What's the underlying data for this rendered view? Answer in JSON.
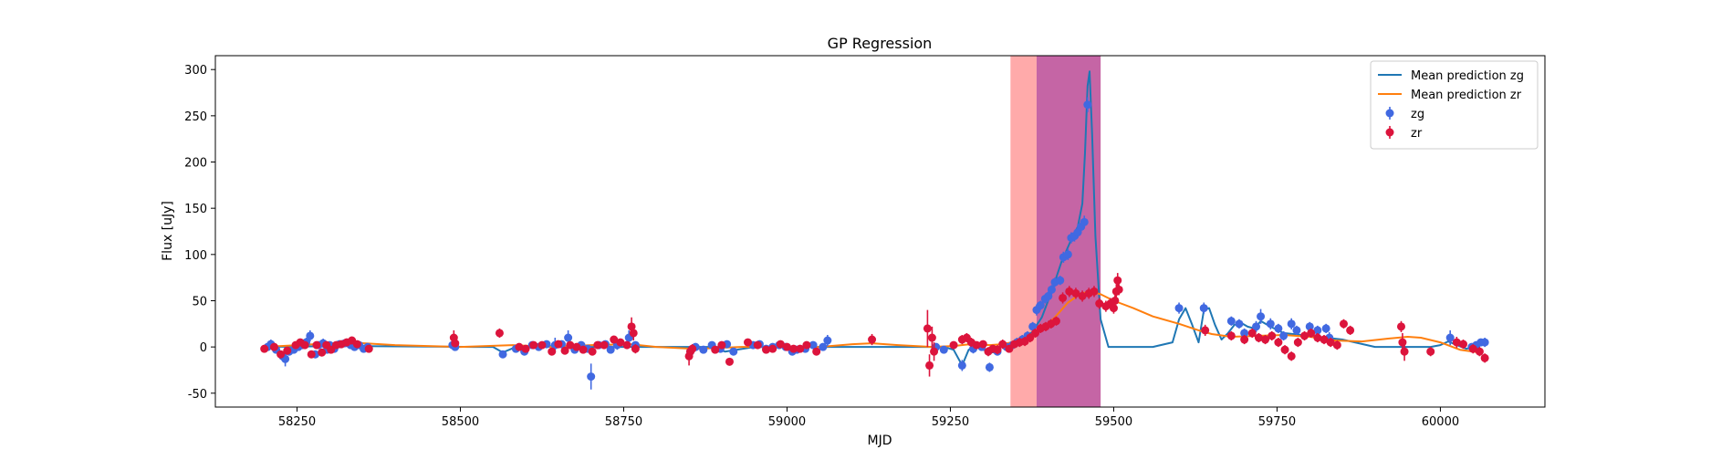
{
  "chart_data": {
    "type": "scatter",
    "title": "GP Regression",
    "xlabel": "MJD",
    "ylabel": "Flux [uJy]",
    "xlim": [
      58125,
      60160
    ],
    "ylim": [
      -65,
      315
    ],
    "xticks": [
      58250,
      58500,
      58750,
      59000,
      59250,
      59500,
      59750,
      60000
    ],
    "yticks": [
      -50,
      0,
      50,
      100,
      150,
      200,
      250,
      300
    ],
    "legend_position": "upper right",
    "shaded_regions": [
      {
        "x0": 59342,
        "x1": 59382,
        "color": "#ffaaaa"
      },
      {
        "x0": 59382,
        "x1": 59480,
        "color": "#c565a5"
      }
    ],
    "series": [
      {
        "name": "Mean prediction zg",
        "kind": "line",
        "color": "#1f77b4",
        "x": [
          58200,
          58320,
          58520,
          58550,
          58565,
          58585,
          58650,
          58700,
          58760,
          58830,
          58880,
          58905,
          58950,
          59000,
          59060,
          59100,
          59200,
          59240,
          59255,
          59268,
          59278,
          59290,
          59300,
          59315,
          59330,
          59345,
          59360,
          59375,
          59390,
          59405,
          59420,
          59435,
          59445,
          59452,
          59456,
          59460,
          59463,
          59467,
          59472,
          59480,
          59492,
          59505,
          59520,
          59560,
          59590,
          59600,
          59610,
          59620,
          59630,
          59638,
          59646,
          59655,
          59665,
          59675,
          59685,
          59695,
          59705,
          59715,
          59725,
          59740,
          59760,
          59800,
          59850,
          59900,
          59950,
          59985,
          60000,
          60012,
          60025,
          60040,
          60060
        ],
        "y": [
          0,
          1,
          0,
          0,
          -6,
          0,
          1,
          0,
          0,
          0,
          0,
          -5,
          0,
          0,
          0,
          0,
          0,
          0,
          -3,
          -20,
          -3,
          2,
          -3,
          -6,
          1,
          5,
          9,
          16,
          32,
          60,
          92,
          116,
          130,
          155,
          210,
          282,
          298,
          230,
          120,
          30,
          0,
          0,
          0,
          0,
          5,
          30,
          42,
          24,
          5,
          40,
          42,
          24,
          8,
          15,
          24,
          26,
          22,
          20,
          28,
          22,
          15,
          12,
          8,
          0,
          0,
          0,
          2,
          6,
          2,
          -2,
          2
        ]
      },
      {
        "name": "Mean prediction zr",
        "kind": "line",
        "color": "#ff7f0e",
        "x": [
          58200,
          58330,
          58400,
          58500,
          58580,
          58640,
          58700,
          58760,
          58800,
          58860,
          58930,
          59000,
          59050,
          59100,
          59130,
          59170,
          59220,
          59255,
          59280,
          59310,
          59330,
          59350,
          59370,
          59390,
          59410,
          59430,
          59450,
          59465,
          59480,
          59500,
          59530,
          59560,
          59600,
          59630,
          59650,
          59680,
          59720,
          59760,
          59800,
          59840,
          59880,
          59920,
          59950,
          59970,
          60000,
          60030,
          60060
        ],
        "y": [
          0,
          5,
          2,
          0,
          2,
          0,
          2,
          3,
          0,
          -2,
          0,
          0,
          0,
          3,
          4,
          2,
          0,
          1,
          3,
          2,
          3,
          6,
          11,
          20,
          32,
          48,
          58,
          60,
          57,
          50,
          42,
          33,
          25,
          18,
          14,
          11,
          12,
          13,
          11,
          7,
          6,
          9,
          11,
          10,
          5,
          -3,
          -6
        ]
      },
      {
        "name": "zg",
        "kind": "errorbar",
        "color": "#4169e1",
        "x": [
          58205,
          58210,
          58218,
          58228,
          58232,
          58238,
          58245,
          58252,
          58258,
          58264,
          58270,
          58278,
          58283,
          58290,
          58296,
          58300,
          58307,
          58315,
          58323,
          58332,
          58338,
          58345,
          58352,
          58358,
          58488,
          58492,
          58565,
          58585,
          58598,
          58610,
          58620,
          58632,
          58645,
          58655,
          58665,
          58675,
          58685,
          58695,
          58700,
          58712,
          58722,
          58730,
          58740,
          58758,
          58768,
          58852,
          58860,
          58872,
          58885,
          58898,
          58908,
          58918,
          58948,
          58958,
          58968,
          58978,
          58988,
          58998,
          59008,
          59015,
          59028,
          59040,
          59055,
          59062,
          59228,
          59240,
          59268,
          59285,
          59298,
          59310,
          59322,
          59336,
          59345,
          59352,
          59360,
          59368,
          59376,
          59382,
          59388,
          59395,
          59400,
          59405,
          59410,
          59418,
          59423,
          59430,
          59435,
          59440,
          59445,
          59450,
          59455,
          59460,
          59600,
          59638,
          59680,
          59692,
          59700,
          59718,
          59725,
          59740,
          59752,
          59760,
          59772,
          59780,
          59800,
          59812,
          59825,
          59830,
          60015,
          60048,
          60055,
          60062,
          60068
        ],
        "y": [
          0,
          3,
          -3,
          -10,
          -13,
          -5,
          -3,
          0,
          2,
          5,
          12,
          -8,
          2,
          4,
          -3,
          2,
          -2,
          3,
          4,
          2,
          0,
          2,
          -2,
          0,
          2,
          0,
          -8,
          -2,
          -5,
          2,
          0,
          3,
          2,
          3,
          10,
          -3,
          2,
          -2,
          -32,
          2,
          3,
          -3,
          2,
          10,
          2,
          -5,
          0,
          -3,
          2,
          -2,
          3,
          -5,
          2,
          3,
          -2,
          0,
          2,
          0,
          -5,
          -3,
          -2,
          2,
          0,
          7,
          0,
          -3,
          -20,
          -2,
          0,
          -22,
          -5,
          0,
          2,
          5,
          8,
          12,
          22,
          40,
          45,
          52,
          55,
          62,
          70,
          72,
          97,
          100,
          118,
          120,
          124,
          130,
          135,
          262,
          42,
          42,
          28,
          25,
          15,
          22,
          33,
          25,
          20,
          12,
          25,
          18,
          22,
          18,
          20,
          10,
          10,
          0,
          2,
          5,
          5
        ],
        "yerr": [
          3,
          5,
          4,
          5,
          8,
          4,
          4,
          3,
          4,
          5,
          6,
          4,
          4,
          5,
          4,
          3,
          4,
          4,
          4,
          3,
          3,
          3,
          3,
          3,
          3,
          3,
          4,
          4,
          4,
          4,
          4,
          4,
          8,
          4,
          8,
          4,
          4,
          4,
          14,
          4,
          4,
          4,
          5,
          8,
          4,
          4,
          4,
          4,
          4,
          4,
          4,
          4,
          4,
          4,
          4,
          4,
          4,
          4,
          4,
          4,
          4,
          4,
          4,
          6,
          4,
          4,
          6,
          5,
          4,
          5,
          4,
          4,
          4,
          5,
          5,
          5,
          5,
          6,
          5,
          5,
          5,
          5,
          5,
          5,
          6,
          6,
          6,
          6,
          6,
          6,
          7,
          8,
          6,
          6,
          5,
          5,
          5,
          6,
          8,
          6,
          5,
          5,
          6,
          5,
          5,
          5,
          5,
          6,
          8,
          4,
          4,
          4,
          5
        ]
      },
      {
        "name": "zr",
        "kind": "errorbar",
        "color": "#dc143c",
        "x": [
          58200,
          58215,
          58225,
          58235,
          58248,
          58255,
          58262,
          58272,
          58280,
          58288,
          58295,
          58302,
          58310,
          58318,
          58326,
          58334,
          58342,
          58360,
          58490,
          58492,
          58560,
          58590,
          58600,
          58612,
          58625,
          58640,
          58650,
          58660,
          58668,
          58678,
          58688,
          58702,
          58710,
          58720,
          58735,
          58745,
          58755,
          58762,
          58765,
          58768,
          58850,
          58852,
          58855,
          58890,
          58900,
          58912,
          58940,
          58955,
          58968,
          58978,
          58990,
          59000,
          59010,
          59020,
          59030,
          59045,
          59130,
          59215,
          59218,
          59222,
          59225,
          59255,
          59268,
          59275,
          59282,
          59290,
          59300,
          59308,
          59315,
          59322,
          59330,
          59340,
          59348,
          59356,
          59364,
          59372,
          59380,
          59388,
          59396,
          59404,
          59412,
          59422,
          59432,
          59442,
          59452,
          59462,
          59470,
          59478,
          59488,
          59495,
          59500,
          59502,
          59504,
          59506,
          59508,
          59640,
          59680,
          59700,
          59712,
          59722,
          59732,
          59742,
          59752,
          59762,
          59772,
          59782,
          59792,
          59802,
          59812,
          59822,
          59832,
          59842,
          59852,
          59862,
          59940,
          59942,
          59945,
          59985,
          60025,
          60035,
          60050,
          60060,
          60068
        ],
        "y": [
          -2,
          0,
          -8,
          -4,
          2,
          5,
          2,
          -8,
          2,
          -6,
          2,
          -3,
          2,
          3,
          5,
          7,
          3,
          -2,
          10,
          4,
          15,
          0,
          -2,
          2,
          2,
          -5,
          3,
          -4,
          2,
          0,
          -3,
          -5,
          2,
          2,
          8,
          5,
          2,
          22,
          15,
          -2,
          -10,
          -5,
          -2,
          -3,
          2,
          -16,
          5,
          2,
          -3,
          -2,
          3,
          0,
          -2,
          -2,
          2,
          -5,
          8,
          20,
          -20,
          10,
          -5,
          2,
          8,
          10,
          5,
          2,
          3,
          -5,
          -2,
          -3,
          3,
          -2,
          3,
          5,
          6,
          10,
          15,
          20,
          22,
          25,
          28,
          53,
          60,
          58,
          55,
          58,
          60,
          47,
          44,
          47,
          42,
          50,
          60,
          72,
          62,
          18,
          12,
          8,
          15,
          10,
          8,
          12,
          5,
          -3,
          -10,
          5,
          12,
          15,
          10,
          8,
          5,
          2,
          25,
          18,
          22,
          5,
          -5,
          -5,
          5,
          3,
          -2,
          -5,
          -12
        ],
        "yerr": [
          4,
          4,
          4,
          4,
          4,
          4,
          4,
          4,
          4,
          4,
          4,
          4,
          4,
          4,
          4,
          4,
          4,
          4,
          8,
          4,
          5,
          4,
          4,
          4,
          4,
          4,
          4,
          4,
          4,
          4,
          4,
          4,
          4,
          4,
          4,
          4,
          4,
          10,
          8,
          5,
          10,
          6,
          5,
          4,
          4,
          4,
          4,
          4,
          4,
          4,
          4,
          4,
          4,
          4,
          4,
          4,
          6,
          20,
          12,
          12,
          10,
          4,
          5,
          5,
          5,
          4,
          4,
          5,
          4,
          5,
          5,
          4,
          4,
          5,
          5,
          5,
          5,
          5,
          5,
          5,
          5,
          6,
          6,
          6,
          6,
          6,
          6,
          6,
          6,
          6,
          6,
          6,
          8,
          8,
          6,
          6,
          5,
          5,
          5,
          5,
          5,
          5,
          5,
          5,
          5,
          5,
          5,
          5,
          5,
          5,
          5,
          5,
          5,
          5,
          6,
          10,
          10,
          5,
          6,
          5,
          5,
          5,
          5
        ]
      }
    ]
  }
}
